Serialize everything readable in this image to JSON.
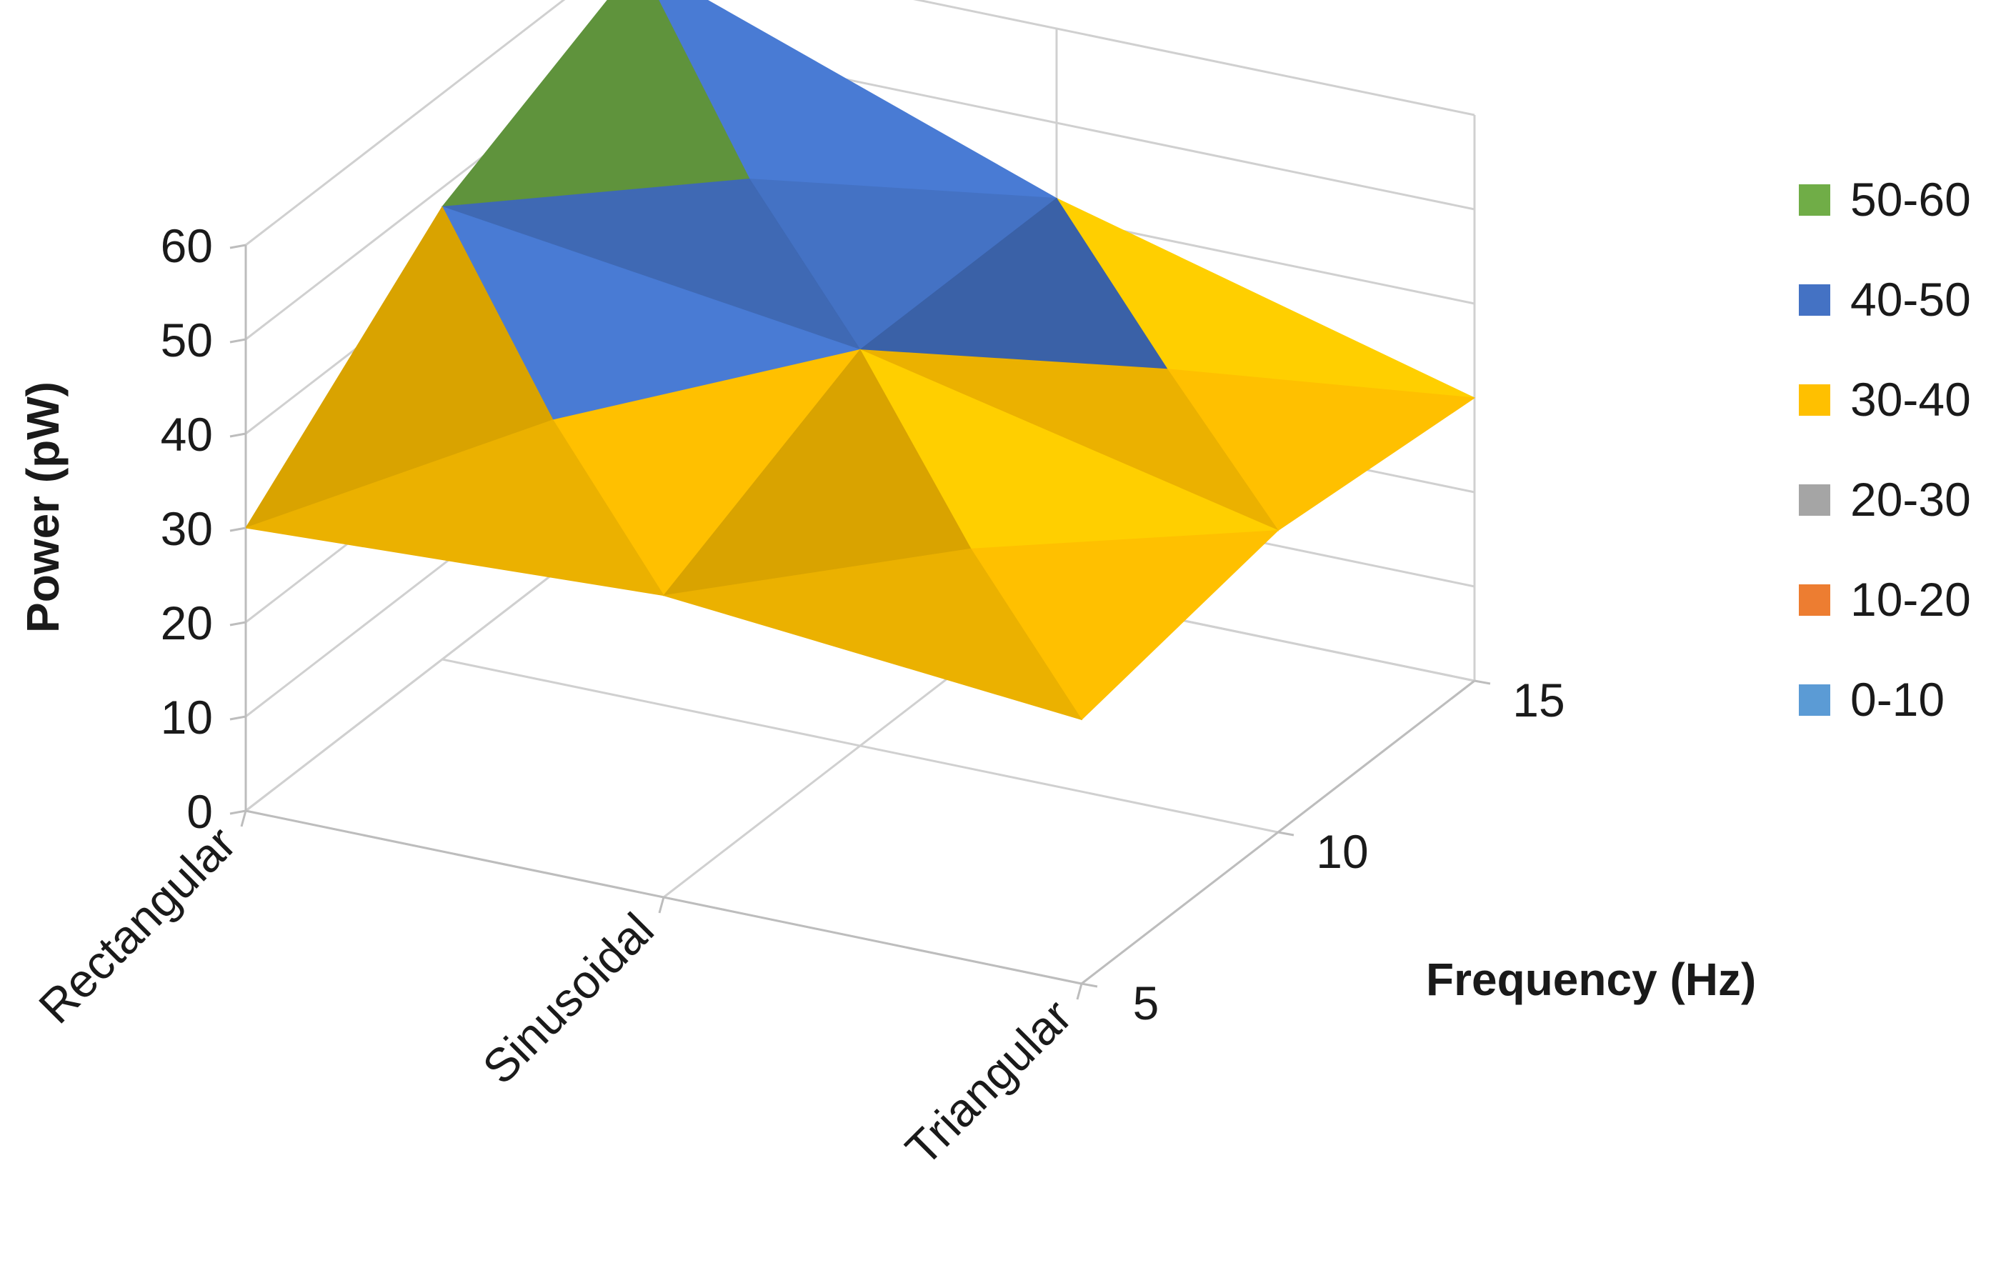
{
  "chart_data": {
    "type": "surface",
    "xlabel": "",
    "ylabel": "Power (pW)",
    "zlabel": "Frequency (Hz)",
    "categories": [
      "Rectangular",
      "Sinusoidal",
      "Triangular"
    ],
    "frequency_ticks": [
      "5",
      "10",
      "15"
    ],
    "y_ticks": [
      "0",
      "10",
      "20",
      "30",
      "40",
      "50",
      "60"
    ],
    "ylim": [
      0,
      60
    ],
    "series": [
      {
        "name": "5",
        "values": [
          30,
          32,
          28
        ]
      },
      {
        "name": "10",
        "values": [
          48,
          42,
          32
        ]
      },
      {
        "name": "15",
        "values": [
          58,
          42,
          30
        ]
      }
    ],
    "legend": [
      {
        "label": "50-60",
        "color": "#70ad47"
      },
      {
        "label": "40-50",
        "color": "#4472c4"
      },
      {
        "label": "30-40",
        "color": "#ffc000"
      },
      {
        "label": "20-30",
        "color": "#a5a5a5"
      },
      {
        "label": "10-20",
        "color": "#ed7d31"
      },
      {
        "label": "0-10",
        "color": "#5b9bd5"
      }
    ],
    "legend_position": "right",
    "grid": true
  }
}
